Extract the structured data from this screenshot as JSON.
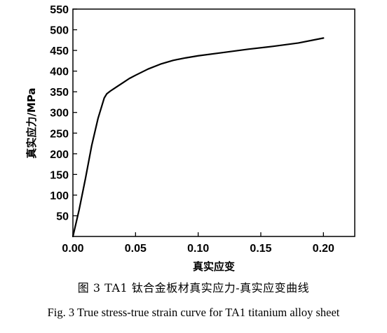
{
  "figure": {
    "caption_cn": "图 3   TA1 钛合金板材真实应力-真实应变曲线",
    "caption_en": "Fig. 3   True stress-true strain curve for TA1 titanium alloy sheet"
  },
  "chart_data": {
    "type": "line",
    "title": "",
    "xlabel": "真实应变",
    "ylabel": "真实应力/MPa",
    "xlim": [
      0.0,
      0.225
    ],
    "ylim": [
      0,
      550
    ],
    "xticks": [
      0.0,
      0.05,
      0.1,
      0.15,
      0.2
    ],
    "xtick_labels": [
      "0.00",
      "0.05",
      "0.10",
      "0.15",
      "0.20"
    ],
    "yticks": [
      50,
      100,
      150,
      200,
      250,
      300,
      350,
      400,
      450,
      500,
      550
    ],
    "ytick_labels": [
      "50",
      "100",
      "150",
      "200",
      "250",
      "300",
      "350",
      "400",
      "450",
      "500",
      "550"
    ],
    "grid": false,
    "legend": "none",
    "line_color": "#000000",
    "series": [
      {
        "x": [
          0.0,
          0.005,
          0.01,
          0.015,
          0.02,
          0.025,
          0.027,
          0.03,
          0.035,
          0.04,
          0.045,
          0.05,
          0.06,
          0.07,
          0.08,
          0.09,
          0.1,
          0.12,
          0.14,
          0.16,
          0.18,
          0.2
        ],
        "y": [
          0,
          65,
          140,
          220,
          285,
          335,
          345,
          352,
          362,
          372,
          382,
          390,
          405,
          417,
          426,
          432,
          437,
          445,
          453,
          460,
          468,
          480
        ]
      }
    ]
  }
}
